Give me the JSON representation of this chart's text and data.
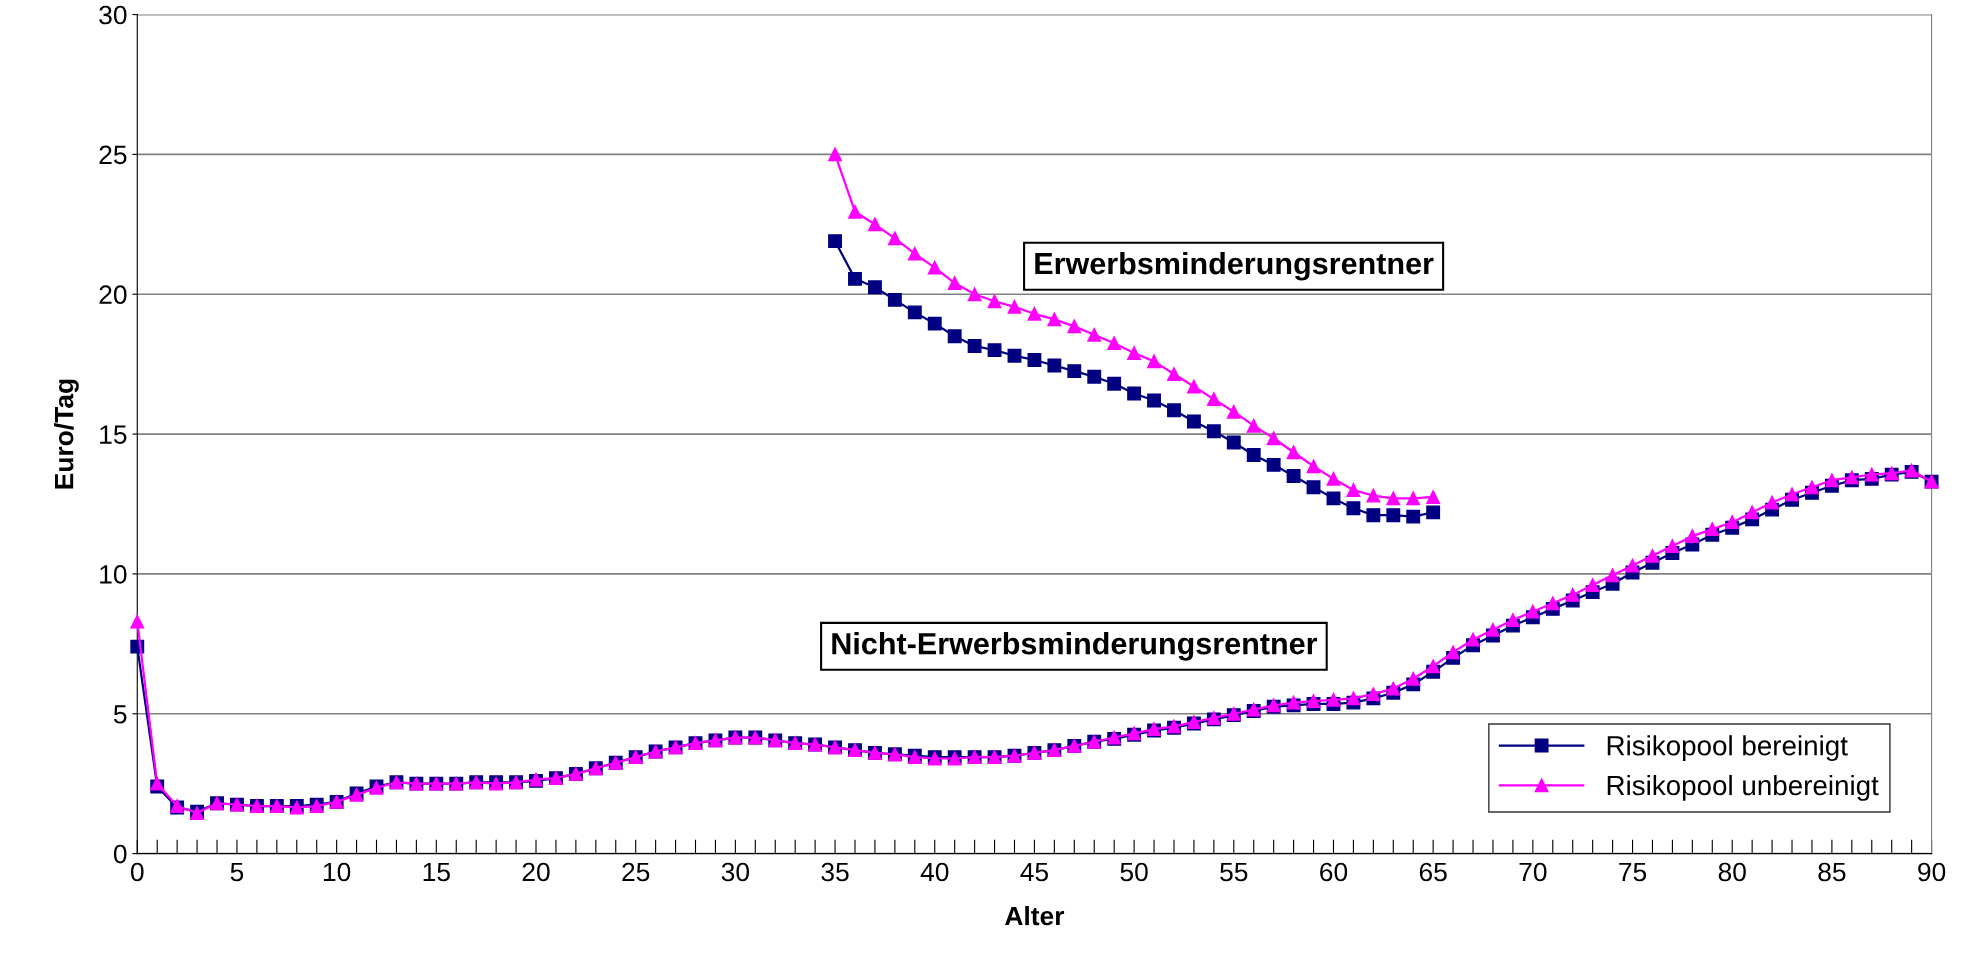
{
  "chart_data": {
    "type": "line",
    "xlabel": "Alter",
    "ylabel": "Euro/Tag",
    "xlim": [
      0,
      90
    ],
    "ylim": [
      0,
      30
    ],
    "xticks": [
      0,
      {
        "value": 1,
        "label": null
      },
      {
        "value": 2,
        "label": null
      },
      {
        "value": 3,
        "label": null
      },
      {
        "value": 4,
        "label": null
      },
      5,
      {
        "value": 6,
        "label": null
      },
      {
        "value": 7,
        "label": null
      },
      {
        "value": 8,
        "label": null
      },
      {
        "value": 9,
        "label": null
      },
      10,
      {
        "value": 11,
        "label": null
      },
      {
        "value": 12,
        "label": null
      },
      {
        "value": 13,
        "label": null
      },
      {
        "value": 14,
        "label": null
      },
      15,
      {
        "value": 16,
        "label": null
      },
      {
        "value": 17,
        "label": null
      },
      {
        "value": 18,
        "label": null
      },
      {
        "value": 19,
        "label": null
      },
      20,
      {
        "value": 21,
        "label": null
      },
      {
        "value": 22,
        "label": null
      },
      {
        "value": 23,
        "label": null
      },
      {
        "value": 24,
        "label": null
      },
      25,
      {
        "value": 26,
        "label": null
      },
      {
        "value": 27,
        "label": null
      },
      {
        "value": 28,
        "label": null
      },
      {
        "value": 29,
        "label": null
      },
      30,
      {
        "value": 31,
        "label": null
      },
      {
        "value": 32,
        "label": null
      },
      {
        "value": 33,
        "label": null
      },
      {
        "value": 34,
        "label": null
      },
      35,
      {
        "value": 36,
        "label": null
      },
      {
        "value": 37,
        "label": null
      },
      {
        "value": 38,
        "label": null
      },
      {
        "value": 39,
        "label": null
      },
      40,
      {
        "value": 41,
        "label": null
      },
      {
        "value": 42,
        "label": null
      },
      {
        "value": 43,
        "label": null
      },
      {
        "value": 44,
        "label": null
      },
      45,
      {
        "value": 46,
        "label": null
      },
      {
        "value": 47,
        "label": null
      },
      {
        "value": 48,
        "label": null
      },
      {
        "value": 49,
        "label": null
      },
      50,
      {
        "value": 51,
        "label": null
      },
      {
        "value": 52,
        "label": null
      },
      {
        "value": 53,
        "label": null
      },
      {
        "value": 54,
        "label": null
      },
      55,
      {
        "value": 56,
        "label": null
      },
      {
        "value": 57,
        "label": null
      },
      {
        "value": 58,
        "label": null
      },
      {
        "value": 59,
        "label": null
      },
      60,
      {
        "value": 61,
        "label": null
      },
      {
        "value": 62,
        "label": null
      },
      {
        "value": 63,
        "label": null
      },
      {
        "value": 64,
        "label": null
      },
      65,
      {
        "value": 66,
        "label": null
      },
      {
        "value": 67,
        "label": null
      },
      {
        "value": 68,
        "label": null
      },
      {
        "value": 69,
        "label": null
      },
      70,
      {
        "value": 71,
        "label": null
      },
      {
        "value": 72,
        "label": null
      },
      {
        "value": 73,
        "label": null
      },
      {
        "value": 74,
        "label": null
      },
      75,
      {
        "value": 76,
        "label": null
      },
      {
        "value": 77,
        "label": null
      },
      {
        "value": 78,
        "label": null
      },
      {
        "value": 79,
        "label": null
      },
      80,
      {
        "value": 81,
        "label": null
      },
      {
        "value": 82,
        "label": null
      },
      {
        "value": 83,
        "label": null
      },
      {
        "value": 84,
        "label": null
      },
      85,
      {
        "value": 86,
        "label": null
      },
      {
        "value": 87,
        "label": null
      },
      {
        "value": 88,
        "label": null
      },
      {
        "value": 89,
        "label": null
      },
      90
    ],
    "yticks": [
      0,
      5,
      10,
      15,
      20,
      25,
      30
    ],
    "grid": "y",
    "legend": "bottom right",
    "line_style": "solid",
    "annotations": [
      "Erwerbsminderungsrentner",
      "Nicht-Erwerbsminderungsrentner"
    ],
    "series": [
      {
        "name": "Risikopool bereinigt",
        "color": "#000080",
        "marker": "square",
        "x": [
          0,
          1,
          2,
          3,
          4,
          5,
          6,
          7,
          8,
          9,
          10,
          11,
          12,
          13,
          14,
          15,
          16,
          17,
          18,
          19,
          20,
          21,
          22,
          23,
          24,
          25,
          26,
          27,
          28,
          29,
          30,
          31,
          32,
          33,
          34,
          35,
          36,
          37,
          38,
          39,
          40,
          41,
          42,
          43,
          44,
          45,
          46,
          47,
          48,
          49,
          50,
          51,
          52,
          53,
          54,
          55,
          56,
          57,
          58,
          59,
          60,
          61,
          62,
          63,
          64,
          65,
          66,
          67,
          68,
          69,
          70,
          71,
          72,
          73,
          74,
          75,
          76,
          77,
          78,
          79,
          80,
          81,
          82,
          83,
          84,
          85,
          86,
          87,
          88,
          89,
          90
        ],
        "values": [
          7.4,
          2.4,
          1.65,
          1.5,
          1.8,
          1.75,
          1.7,
          1.7,
          1.7,
          1.75,
          1.85,
          2.15,
          2.4,
          2.55,
          2.5,
          2.5,
          2.5,
          2.55,
          2.55,
          2.55,
          2.6,
          2.7,
          2.85,
          3.05,
          3.25,
          3.45,
          3.65,
          3.8,
          3.95,
          4.05,
          4.15,
          4.15,
          4.05,
          3.95,
          3.9,
          3.8,
          3.7,
          3.6,
          3.55,
          3.5,
          3.45,
          3.45,
          3.45,
          3.45,
          3.5,
          3.6,
          3.7,
          3.85,
          4.0,
          4.1,
          4.25,
          4.4,
          4.5,
          4.65,
          4.8,
          4.95,
          5.1,
          5.25,
          5.3,
          5.35,
          5.35,
          5.4,
          5.55,
          5.75,
          6.05,
          6.5,
          7.0,
          7.45,
          7.8,
          8.15,
          8.45,
          8.75,
          9.05,
          9.35,
          9.65,
          10.05,
          10.4,
          10.75,
          11.05,
          11.4,
          11.65,
          11.95,
          12.3,
          12.65,
          12.9,
          13.15,
          13.35,
          13.4,
          13.55,
          13.65,
          13.3
        ]
      },
      {
        "name": "Risikopool unbereinigt",
        "color": "#ff00ff",
        "marker": "triangle",
        "x": [
          0,
          1,
          2,
          3,
          4,
          5,
          6,
          7,
          8,
          9,
          10,
          11,
          12,
          13,
          14,
          15,
          16,
          17,
          18,
          19,
          20,
          21,
          22,
          23,
          24,
          25,
          26,
          27,
          28,
          29,
          30,
          31,
          32,
          33,
          34,
          35,
          36,
          37,
          38,
          39,
          40,
          41,
          42,
          43,
          44,
          45,
          46,
          47,
          48,
          49,
          50,
          51,
          52,
          53,
          54,
          55,
          56,
          57,
          58,
          59,
          60,
          61,
          62,
          63,
          64,
          65,
          66,
          67,
          68,
          69,
          70,
          71,
          72,
          73,
          74,
          75,
          76,
          77,
          78,
          79,
          80,
          81,
          82,
          83,
          84,
          85,
          86,
          87,
          88,
          89,
          90
        ],
        "values": [
          8.3,
          2.5,
          1.7,
          1.45,
          1.8,
          1.75,
          1.7,
          1.7,
          1.65,
          1.7,
          1.85,
          2.1,
          2.35,
          2.55,
          2.5,
          2.5,
          2.5,
          2.55,
          2.5,
          2.55,
          2.65,
          2.7,
          2.85,
          3.05,
          3.25,
          3.45,
          3.65,
          3.8,
          3.95,
          4.05,
          4.15,
          4.15,
          4.05,
          3.95,
          3.9,
          3.8,
          3.7,
          3.6,
          3.55,
          3.45,
          3.4,
          3.4,
          3.45,
          3.45,
          3.5,
          3.6,
          3.7,
          3.85,
          4.0,
          4.15,
          4.3,
          4.45,
          4.55,
          4.7,
          4.85,
          5.0,
          5.15,
          5.3,
          5.4,
          5.45,
          5.5,
          5.55,
          5.7,
          5.9,
          6.25,
          6.7,
          7.2,
          7.65,
          8.0,
          8.35,
          8.65,
          8.95,
          9.25,
          9.6,
          9.95,
          10.3,
          10.65,
          11.0,
          11.35,
          11.6,
          11.85,
          12.2,
          12.55,
          12.85,
          13.1,
          13.35,
          13.45,
          13.55,
          13.6,
          13.7,
          13.3
        ]
      },
      {
        "color": "#000080",
        "marker": "square",
        "x": [
          35,
          36,
          37,
          38,
          39,
          40,
          41,
          42,
          43,
          44,
          45,
          46,
          47,
          48,
          49,
          50,
          51,
          52,
          53,
          54,
          55,
          56,
          57,
          58,
          59,
          60,
          61,
          62,
          63,
          64,
          65
        ],
        "values": [
          21.9,
          20.55,
          20.25,
          19.8,
          19.35,
          18.95,
          18.5,
          18.15,
          18.0,
          17.8,
          17.65,
          17.45,
          17.25,
          17.05,
          16.8,
          16.45,
          16.2,
          15.85,
          15.45,
          15.1,
          14.7,
          14.25,
          13.9,
          13.5,
          13.1,
          12.7,
          12.35,
          12.1,
          12.1,
          12.05,
          12.2
        ]
      },
      {
        "color": "#ff00ff",
        "marker": "triangle",
        "x": [
          35,
          36,
          37,
          38,
          39,
          40,
          41,
          42,
          43,
          44,
          45,
          46,
          47,
          48,
          49,
          50,
          51,
          52,
          53,
          54,
          55,
          56,
          57,
          58,
          59,
          60,
          61,
          62,
          63,
          64,
          65
        ],
        "values": [
          25.0,
          22.95,
          22.5,
          22.0,
          21.45,
          20.95,
          20.4,
          20.0,
          19.75,
          19.55,
          19.3,
          19.1,
          18.85,
          18.55,
          18.25,
          17.9,
          17.6,
          17.15,
          16.7,
          16.25,
          15.8,
          15.3,
          14.85,
          14.35,
          13.85,
          13.4,
          13.0,
          12.8,
          12.7,
          12.7,
          12.75
        ]
      }
    ]
  }
}
